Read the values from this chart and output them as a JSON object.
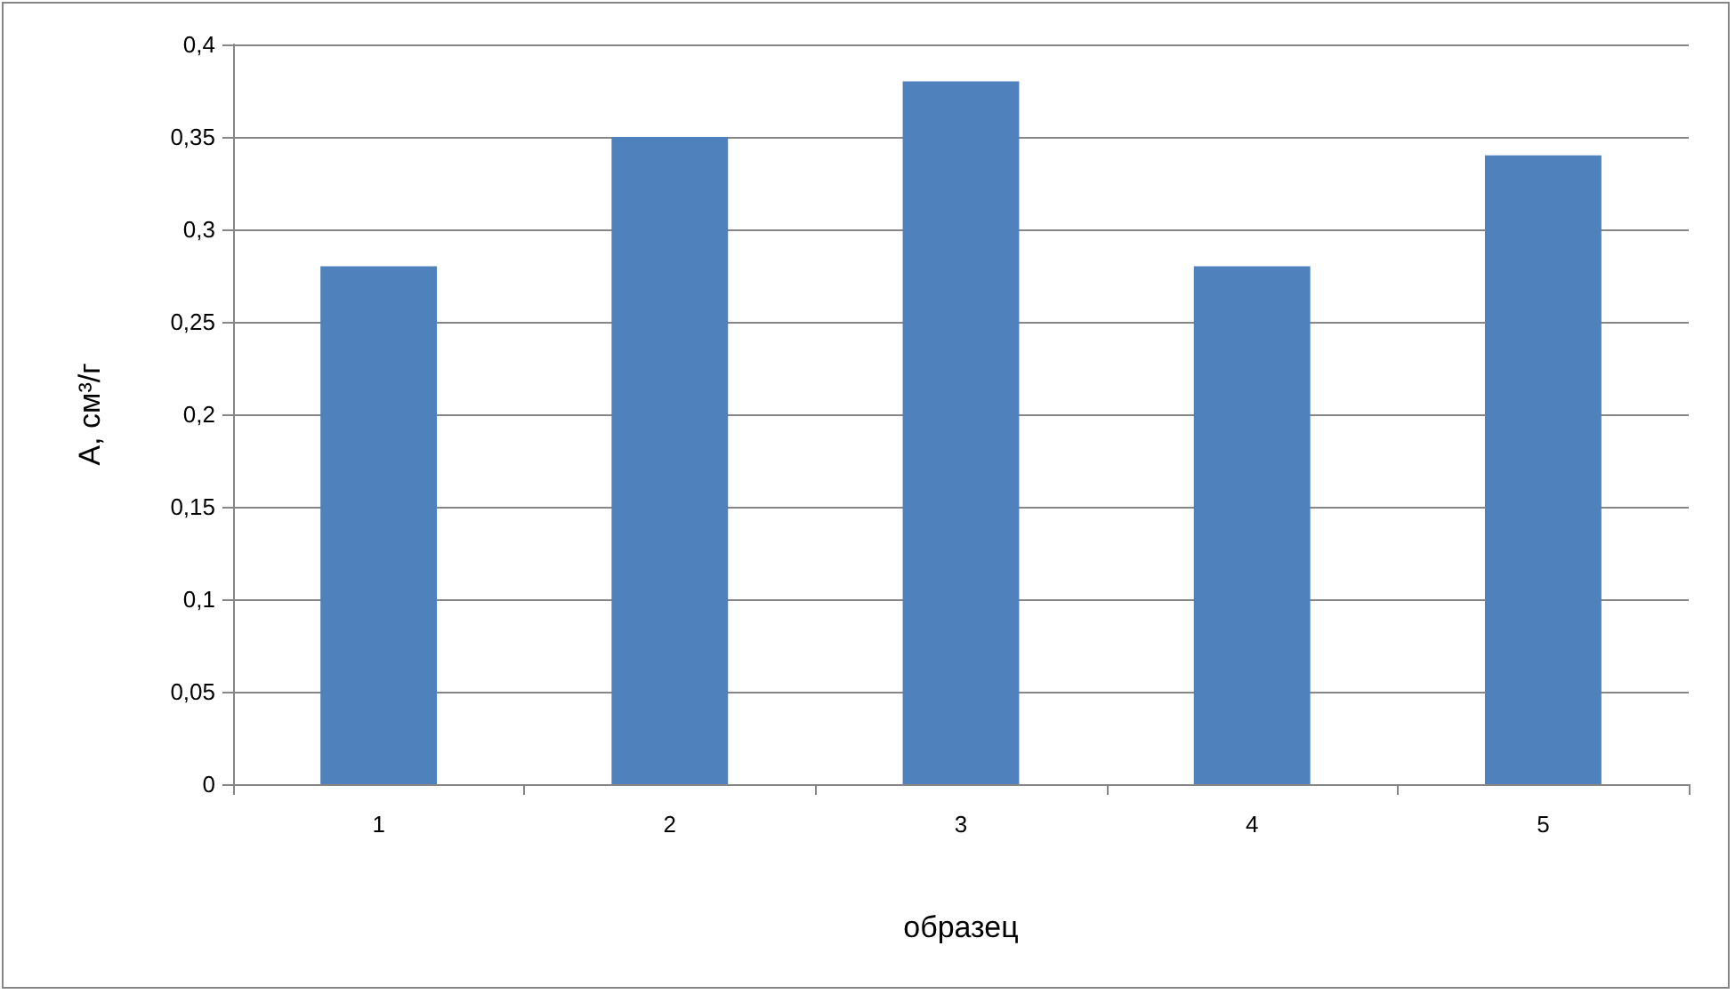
{
  "chart_data": {
    "type": "bar",
    "xlabel": "образец",
    "ylabel": "A, см³/г",
    "categories": [
      "1",
      "2",
      "3",
      "4",
      "5"
    ],
    "values": [
      0.28,
      0.35,
      0.38,
      0.28,
      0.34
    ],
    "color": "#4f81bd",
    "ylim": [
      0,
      0.4
    ],
    "yticks": [
      {
        "value": 0,
        "label": "0"
      },
      {
        "value": 0.05,
        "label": "0,05"
      },
      {
        "value": 0.1,
        "label": "0,1"
      },
      {
        "value": 0.15,
        "label": "0,15"
      },
      {
        "value": 0.2,
        "label": "0,2"
      },
      {
        "value": 0.25,
        "label": "0,25"
      },
      {
        "value": 0.3,
        "label": "0,3"
      },
      {
        "value": 0.35,
        "label": "0,35"
      },
      {
        "value": 0.4,
        "label": "0,4"
      }
    ],
    "grid": "y"
  }
}
